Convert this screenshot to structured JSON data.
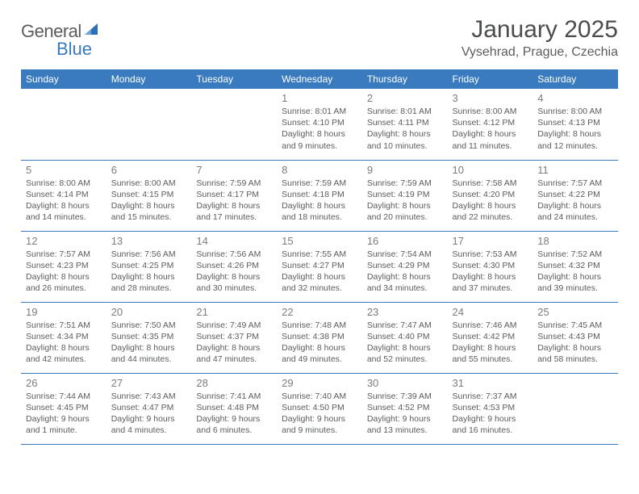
{
  "brand": {
    "part1": "General",
    "part2": "Blue"
  },
  "title": "January 2025",
  "location": "Vysehrad, Prague, Czechia",
  "colors": {
    "header_bg": "#3a7bbf",
    "header_fg": "#ffffff",
    "text": "#5a5c5e",
    "daynum": "#7a7c7e",
    "rule": "#3a7bbf",
    "page_bg": "#ffffff"
  },
  "day_names": [
    "Sunday",
    "Monday",
    "Tuesday",
    "Wednesday",
    "Thursday",
    "Friday",
    "Saturday"
  ],
  "weeks": [
    [
      null,
      null,
      null,
      {
        "n": "1",
        "sr": "Sunrise: 8:01 AM",
        "ss": "Sunset: 4:10 PM",
        "dl": "Daylight: 8 hours and 9 minutes."
      },
      {
        "n": "2",
        "sr": "Sunrise: 8:01 AM",
        "ss": "Sunset: 4:11 PM",
        "dl": "Daylight: 8 hours and 10 minutes."
      },
      {
        "n": "3",
        "sr": "Sunrise: 8:00 AM",
        "ss": "Sunset: 4:12 PM",
        "dl": "Daylight: 8 hours and 11 minutes."
      },
      {
        "n": "4",
        "sr": "Sunrise: 8:00 AM",
        "ss": "Sunset: 4:13 PM",
        "dl": "Daylight: 8 hours and 12 minutes."
      }
    ],
    [
      {
        "n": "5",
        "sr": "Sunrise: 8:00 AM",
        "ss": "Sunset: 4:14 PM",
        "dl": "Daylight: 8 hours and 14 minutes."
      },
      {
        "n": "6",
        "sr": "Sunrise: 8:00 AM",
        "ss": "Sunset: 4:15 PM",
        "dl": "Daylight: 8 hours and 15 minutes."
      },
      {
        "n": "7",
        "sr": "Sunrise: 7:59 AM",
        "ss": "Sunset: 4:17 PM",
        "dl": "Daylight: 8 hours and 17 minutes."
      },
      {
        "n": "8",
        "sr": "Sunrise: 7:59 AM",
        "ss": "Sunset: 4:18 PM",
        "dl": "Daylight: 8 hours and 18 minutes."
      },
      {
        "n": "9",
        "sr": "Sunrise: 7:59 AM",
        "ss": "Sunset: 4:19 PM",
        "dl": "Daylight: 8 hours and 20 minutes."
      },
      {
        "n": "10",
        "sr": "Sunrise: 7:58 AM",
        "ss": "Sunset: 4:20 PM",
        "dl": "Daylight: 8 hours and 22 minutes."
      },
      {
        "n": "11",
        "sr": "Sunrise: 7:57 AM",
        "ss": "Sunset: 4:22 PM",
        "dl": "Daylight: 8 hours and 24 minutes."
      }
    ],
    [
      {
        "n": "12",
        "sr": "Sunrise: 7:57 AM",
        "ss": "Sunset: 4:23 PM",
        "dl": "Daylight: 8 hours and 26 minutes."
      },
      {
        "n": "13",
        "sr": "Sunrise: 7:56 AM",
        "ss": "Sunset: 4:25 PM",
        "dl": "Daylight: 8 hours and 28 minutes."
      },
      {
        "n": "14",
        "sr": "Sunrise: 7:56 AM",
        "ss": "Sunset: 4:26 PM",
        "dl": "Daylight: 8 hours and 30 minutes."
      },
      {
        "n": "15",
        "sr": "Sunrise: 7:55 AM",
        "ss": "Sunset: 4:27 PM",
        "dl": "Daylight: 8 hours and 32 minutes."
      },
      {
        "n": "16",
        "sr": "Sunrise: 7:54 AM",
        "ss": "Sunset: 4:29 PM",
        "dl": "Daylight: 8 hours and 34 minutes."
      },
      {
        "n": "17",
        "sr": "Sunrise: 7:53 AM",
        "ss": "Sunset: 4:30 PM",
        "dl": "Daylight: 8 hours and 37 minutes."
      },
      {
        "n": "18",
        "sr": "Sunrise: 7:52 AM",
        "ss": "Sunset: 4:32 PM",
        "dl": "Daylight: 8 hours and 39 minutes."
      }
    ],
    [
      {
        "n": "19",
        "sr": "Sunrise: 7:51 AM",
        "ss": "Sunset: 4:34 PM",
        "dl": "Daylight: 8 hours and 42 minutes."
      },
      {
        "n": "20",
        "sr": "Sunrise: 7:50 AM",
        "ss": "Sunset: 4:35 PM",
        "dl": "Daylight: 8 hours and 44 minutes."
      },
      {
        "n": "21",
        "sr": "Sunrise: 7:49 AM",
        "ss": "Sunset: 4:37 PM",
        "dl": "Daylight: 8 hours and 47 minutes."
      },
      {
        "n": "22",
        "sr": "Sunrise: 7:48 AM",
        "ss": "Sunset: 4:38 PM",
        "dl": "Daylight: 8 hours and 49 minutes."
      },
      {
        "n": "23",
        "sr": "Sunrise: 7:47 AM",
        "ss": "Sunset: 4:40 PM",
        "dl": "Daylight: 8 hours and 52 minutes."
      },
      {
        "n": "24",
        "sr": "Sunrise: 7:46 AM",
        "ss": "Sunset: 4:42 PM",
        "dl": "Daylight: 8 hours and 55 minutes."
      },
      {
        "n": "25",
        "sr": "Sunrise: 7:45 AM",
        "ss": "Sunset: 4:43 PM",
        "dl": "Daylight: 8 hours and 58 minutes."
      }
    ],
    [
      {
        "n": "26",
        "sr": "Sunrise: 7:44 AM",
        "ss": "Sunset: 4:45 PM",
        "dl": "Daylight: 9 hours and 1 minute."
      },
      {
        "n": "27",
        "sr": "Sunrise: 7:43 AM",
        "ss": "Sunset: 4:47 PM",
        "dl": "Daylight: 9 hours and 4 minutes."
      },
      {
        "n": "28",
        "sr": "Sunrise: 7:41 AM",
        "ss": "Sunset: 4:48 PM",
        "dl": "Daylight: 9 hours and 6 minutes."
      },
      {
        "n": "29",
        "sr": "Sunrise: 7:40 AM",
        "ss": "Sunset: 4:50 PM",
        "dl": "Daylight: 9 hours and 9 minutes."
      },
      {
        "n": "30",
        "sr": "Sunrise: 7:39 AM",
        "ss": "Sunset: 4:52 PM",
        "dl": "Daylight: 9 hours and 13 minutes."
      },
      {
        "n": "31",
        "sr": "Sunrise: 7:37 AM",
        "ss": "Sunset: 4:53 PM",
        "dl": "Daylight: 9 hours and 16 minutes."
      },
      null
    ]
  ]
}
